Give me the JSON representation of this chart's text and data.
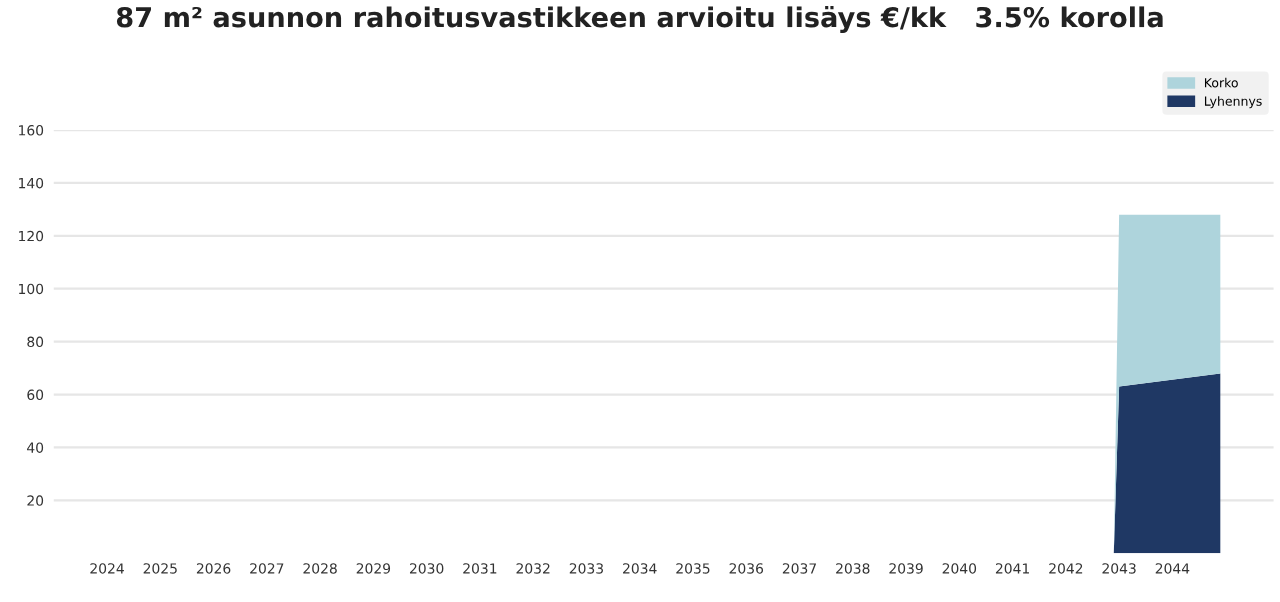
{
  "chart_data": {
    "type": "area",
    "stacked": true,
    "title": "87 m² asunnon rahoitusvastikkeen arvioitu lisäys €/kk   3.5% korolla",
    "x": [
      2042.9,
      2043,
      2044.9
    ],
    "series": [
      {
        "name": "Lyhennys",
        "color": "#1f3864",
        "values": [
          0,
          63,
          68
        ]
      },
      {
        "name": "Korko",
        "color": "#aed4dc",
        "values": [
          0,
          65,
          60
        ]
      }
    ],
    "xlim": [
      2023,
      2045.9
    ],
    "xticks": [
      2024,
      2025,
      2026,
      2027,
      2028,
      2029,
      2030,
      2031,
      2032,
      2033,
      2034,
      2035,
      2036,
      2037,
      2038,
      2039,
      2040,
      2041,
      2042,
      2043,
      2044
    ],
    "ylim": [
      0,
      160
    ],
    "yticks": [
      20,
      40,
      60,
      80,
      100,
      120,
      140,
      160
    ],
    "grid": "y",
    "legend": "top right"
  }
}
